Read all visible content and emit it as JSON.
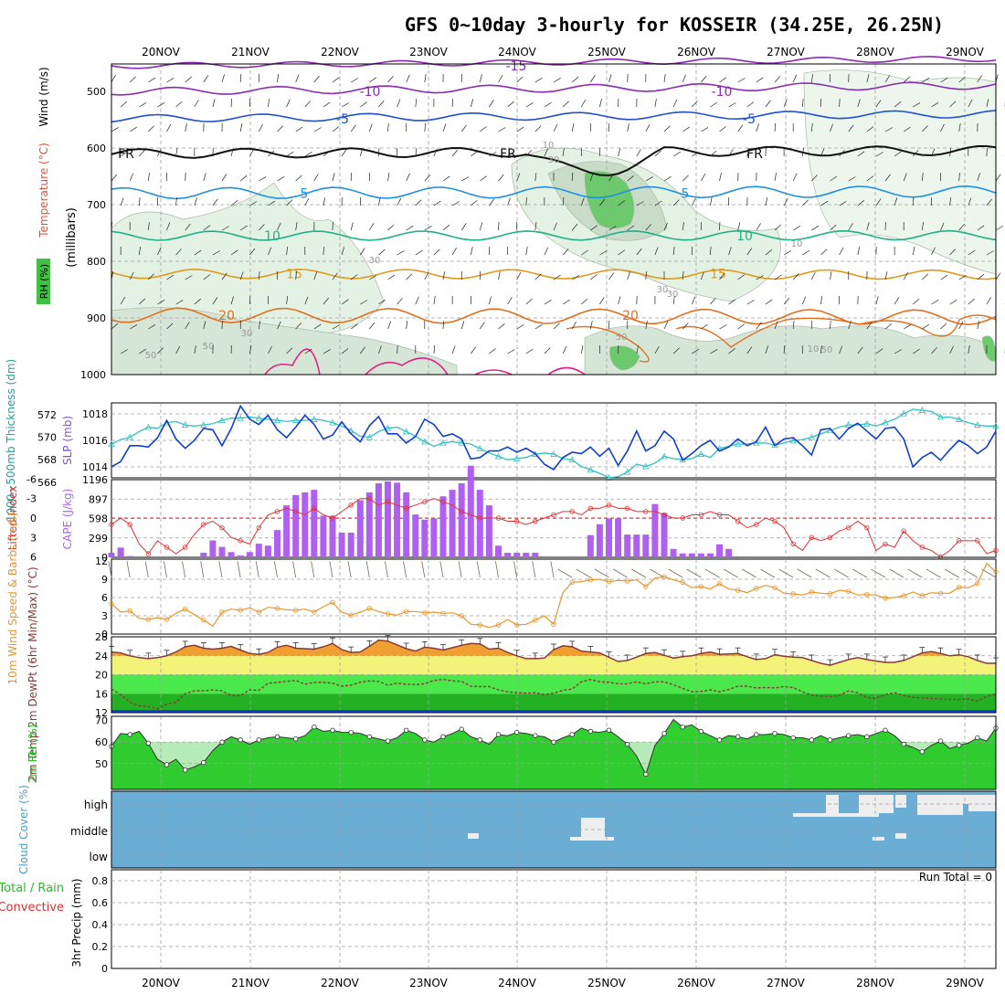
{
  "title": "GFS 0~10day 3-hourly for KOSSEIR (34.25E, 26.25N)",
  "days": [
    "20NOV",
    "21NOV",
    "22NOV",
    "23NOV",
    "24NOV",
    "25NOV",
    "26NOV",
    "27NOV",
    "28NOV",
    "29NOV"
  ],
  "colors": {
    "grid": "#a0a0a0",
    "rh": "#7fd07f",
    "thick": "#33c0c0",
    "slp": "#1040c8",
    "lifted": "#e03030",
    "cape": "#b060f0",
    "wind": "#e8952a",
    "temp": "#f0a030",
    "dew": "#8b3a3a",
    "rh2m": "#22cc22",
    "cloud": "#6aaed6",
    "cloudHi": "#eeeeee"
  },
  "chart_data": [
    {
      "id": "upper-air",
      "type": "heatmap",
      "ylabels": {
        "rh": "RH (%)",
        "temp": "Temperature (°C)",
        "wind": "Wind (m/s)",
        "pressure": "(millibars)"
      },
      "yticks": [
        "500",
        "600",
        "700",
        "800",
        "900",
        "1000"
      ],
      "ylim": [
        1000,
        450
      ],
      "isotherm_labels": [
        "-15",
        "-10",
        "-10",
        "-5",
        "-5",
        "FR",
        "FR",
        "FR",
        "5",
        "5",
        "10",
        "10",
        "15",
        "15",
        "20",
        "20"
      ],
      "rh_labels": [
        "10",
        "30",
        "30",
        "10",
        "50",
        "50",
        "30",
        "10",
        "30",
        "50",
        "50",
        "30"
      ]
    },
    {
      "id": "slp-thickness",
      "type": "line",
      "ylabel_left": "1000~500mb Thickness (dm)",
      "ylabel_right": "SLP (mb)",
      "left_ticks": [
        "572",
        "570",
        "568",
        "566"
      ],
      "right_ticks": [
        "1018",
        "1016",
        "1014"
      ],
      "series": [
        {
          "name": "SLP",
          "values": [
            1014.0,
            1014.4,
            1015.6,
            1015.6,
            1015.5,
            1016.2,
            1017.5,
            1016.1,
            1015.4,
            1016.0,
            1016.9,
            1016.8,
            1015.6,
            1016.9,
            1018.6,
            1017.6,
            1017.2,
            1017.9,
            1016.8,
            1016.2,
            1017.0,
            1017.9,
            1017.2,
            1016.1,
            1016.4,
            1017.4,
            1016.5,
            1015.9,
            1017.1,
            1017.8,
            1016.5,
            1016.5,
            1015.8,
            1016.3,
            1017.6,
            1017.2,
            1016.3,
            1016.5,
            1016.1,
            1014.6,
            1014.7,
            1015.2,
            1015.2,
            1015.5,
            1015.1,
            1015.4,
            1015.0,
            1014.2,
            1013.8,
            1014.7,
            1015.1,
            1015.0,
            1015.5,
            1014.8,
            1015.4,
            1014.1,
            1015.2,
            1016.7,
            1015.2,
            1015.6,
            1016.7,
            1016.1,
            1014.5,
            1015.0,
            1015.6,
            1016.0,
            1015.2,
            1015.5,
            1016.1,
            1015.6,
            1015.9,
            1017.0,
            1015.6,
            1016.1,
            1016.2,
            1015.6,
            1014.9,
            1016.8,
            1016.9,
            1016.1,
            1016.9,
            1017.3,
            1016.7,
            1016.1,
            1016.9,
            1017.0,
            1016.1,
            1014.0,
            1014.7,
            1015.1,
            1014.5,
            1015.3,
            1016.0,
            1015.6,
            1015.0,
            1015.5,
            1016.7
          ]
        },
        {
          "name": "Thickness",
          "values": [
            569.4,
            569.8,
            570.0,
            570.5,
            570.9,
            570.8,
            571.3,
            571.4,
            571.1,
            571.0,
            571.1,
            571.2,
            571.5,
            571.7,
            571.7,
            571.8,
            571.7,
            571.6,
            571.5,
            571.4,
            571.5,
            571.5,
            571.6,
            571.5,
            571.3,
            571.0,
            570.6,
            570.1,
            570.0,
            570.5,
            570.8,
            570.9,
            570.5,
            570.1,
            569.6,
            569.2,
            569.5,
            569.6,
            569.5,
            569.4,
            569.0,
            568.6,
            568.3,
            568.0,
            568.1,
            568.2,
            568.5,
            568.6,
            568.5,
            568.1,
            568.0,
            567.4,
            567.1,
            566.8,
            566.4,
            566.5,
            566.9,
            567.6,
            567.4,
            567.7,
            568.3,
            568.1,
            568.0,
            568.1,
            568.5,
            568.2,
            569.0,
            569.2,
            569.4,
            569.4,
            569.5,
            569.5,
            569.3,
            569.5,
            569.7,
            569.8,
            570.0,
            570.3,
            570.6,
            570.9,
            571.1,
            571.1,
            571.2,
            571.0,
            571.3,
            571.6,
            572.1,
            572.5,
            572.4,
            572.3,
            571.8,
            571.8,
            571.6,
            571.3,
            571.1,
            571.0,
            571.0
          ]
        }
      ]
    },
    {
      "id": "cape-lifted",
      "type": "bar",
      "ylabel_left": "Lifted Index",
      "ylabel_right": "CAPE (J/kg)",
      "left_ticks": [
        "-6",
        "-3",
        "0",
        "3",
        "6"
      ],
      "right_ticks": [
        "1196",
        "897",
        "598",
        "299",
        "0"
      ],
      "series": [
        {
          "name": "CAPE",
          "values": [
            70,
            150,
            20,
            0,
            0,
            0,
            0,
            0,
            0,
            0,
            70,
            260,
            160,
            80,
            30,
            80,
            210,
            180,
            420,
            800,
            960,
            1000,
            1040,
            640,
            640,
            380,
            380,
            880,
            1000,
            1140,
            1170,
            1150,
            1000,
            660,
            580,
            600,
            940,
            1040,
            1140,
            1410,
            1040,
            800,
            180,
            70,
            70,
            70,
            70,
            0,
            0,
            0,
            0,
            0,
            340,
            510,
            600,
            600,
            350,
            350,
            350,
            820,
            680,
            130,
            60,
            60,
            60,
            60,
            200,
            130,
            0,
            0,
            0,
            0,
            0,
            0,
            0,
            0,
            0,
            0,
            0,
            0,
            0,
            0,
            0,
            0,
            0,
            0,
            0,
            0,
            0,
            0,
            0,
            0,
            0,
            0,
            0,
            0,
            0
          ]
        },
        {
          "name": "Lifted Index",
          "values": [
            1.0,
            0.0,
            1.0,
            4.0,
            5.5,
            3.5,
            4.5,
            5.5,
            4.5,
            2.5,
            1.0,
            0.5,
            1.5,
            3.0,
            3.5,
            4.0,
            1.5,
            -0.5,
            -1.0,
            -1.5,
            -1.0,
            -0.5,
            -1.5,
            -0.5,
            0.0,
            -1.0,
            -2.0,
            -3.0,
            -3.0,
            -2.0,
            -2.5,
            -2.0,
            -1.5,
            -2.0,
            -2.5,
            -3.0,
            -2.5,
            -2.0,
            -1.0,
            -0.5,
            0.0,
            0.0,
            0.0,
            0.5,
            0.5,
            1.0,
            0.5,
            0.0,
            -0.5,
            -1.0,
            -1.0,
            -0.5,
            -1.5,
            -1.5,
            -2.0,
            -1.5,
            -1.5,
            -1.0,
            -1.0,
            -1.0,
            -0.5,
            0.0,
            0.0,
            -0.5,
            -0.5,
            -1.0,
            -0.5,
            -0.5,
            0.5,
            1.5,
            1.0,
            0.0,
            0.5,
            1.5,
            4.0,
            5.0,
            3.0,
            3.5,
            3.0,
            2.0,
            1.5,
            0.5,
            1.5,
            5.0,
            4.0,
            4.5,
            2.0,
            3.5,
            4.5,
            5.0,
            6.0,
            5.0,
            3.5,
            3.5,
            3.5,
            5.5,
            5.0
          ]
        }
      ]
    },
    {
      "id": "wind10m",
      "type": "line",
      "ylabel": "10m Wind Speed & Barbs (m/s)",
      "ticks": [
        "12",
        "9",
        "6",
        "3",
        "0"
      ],
      "ylim": [
        0,
        12
      ],
      "values": [
        5.0,
        3.6,
        3.8,
        2.6,
        2.4,
        2.7,
        2.4,
        3.4,
        4.1,
        3.2,
        2.3,
        1.3,
        3.6,
        4.1,
        3.9,
        4.3,
        3.6,
        4.4,
        4.2,
        4.0,
        3.9,
        4.1,
        3.6,
        4.5,
        5.2,
        3.6,
        3.1,
        3.6,
        4.2,
        3.7,
        3.3,
        3.1,
        3.7,
        3.7,
        3.5,
        3.6,
        3.4,
        3.5,
        3.0,
        1.6,
        1.5,
        1.1,
        1.5,
        2.4,
        1.5,
        1.6,
        2.3,
        3.0,
        1.6,
        6.8,
        8.5,
        8.6,
        8.9,
        9.0,
        8.6,
        8.8,
        8.7,
        8.9,
        7.8,
        9.2,
        9.4,
        8.9,
        8.5,
        7.6,
        7.8,
        7.4,
        8.3,
        7.4,
        7.2,
        6.8,
        7.5,
        8.0,
        7.6,
        6.7,
        6.6,
        6.4,
        6.9,
        6.7,
        6.6,
        7.2,
        7.0,
        6.4,
        6.5,
        6.4,
        5.9,
        6.0,
        6.3,
        6.9,
        6.3,
        6.8,
        6.7,
        6.7,
        7.7,
        7.6,
        8.3,
        11.6,
        10.2
      ]
    },
    {
      "id": "temp2m",
      "type": "area",
      "ylabel": "2m Temp 2m DewPt (6hr Min/Max) (°C)",
      "ticks": [
        "28",
        "24",
        "20",
        "16",
        "12"
      ],
      "ylim": [
        12,
        28
      ],
      "series": [
        {
          "name": "2m Temp",
          "values": [
            24.8,
            24.6,
            24.0,
            23.6,
            23.4,
            23.6,
            24.0,
            24.8,
            25.9,
            26.2,
            25.6,
            25.4,
            25.6,
            26.0,
            25.2,
            24.5,
            24.3,
            24.7,
            25.8,
            26.2,
            25.6,
            25.5,
            25.4,
            25.9,
            26.6,
            25.3,
            24.7,
            24.8,
            26.0,
            27.3,
            27.1,
            26.3,
            25.5,
            25.0,
            25.8,
            25.6,
            25.2,
            25.7,
            26.2,
            26.6,
            26.5,
            25.4,
            25.6,
            24.7,
            24.0,
            23.4,
            23.4,
            23.5,
            25.3,
            26.1,
            25.9,
            25.0,
            24.8,
            24.6,
            23.7,
            22.8,
            23.0,
            23.7,
            24.5,
            24.7,
            24.1,
            23.5,
            23.8,
            24.0,
            24.5,
            24.8,
            24.3,
            24.4,
            24.5,
            23.8,
            23.2,
            23.4,
            24.2,
            23.9,
            23.7,
            23.6,
            23.0,
            22.4,
            22.0,
            22.6,
            23.2,
            23.6,
            23.2,
            22.9,
            22.6,
            22.6,
            23.0,
            23.8,
            24.6,
            24.9,
            24.5,
            24.0,
            24.2,
            23.8,
            23.0,
            22.4,
            22.4
          ]
        },
        {
          "name": "2m DewPt",
          "values": [
            17.0,
            15.8,
            14.2,
            13.4,
            13.3,
            12.8,
            13.8,
            14.2,
            16.0,
            16.6,
            16.6,
            16.8,
            16.6,
            15.6,
            15.6,
            16.8,
            16.7,
            18.2,
            18.4,
            18.6,
            18.8,
            18.0,
            18.4,
            18.4,
            18.2,
            17.6,
            17.8,
            18.4,
            18.7,
            18.6,
            17.8,
            18.2,
            18.0,
            17.9,
            18.1,
            18.8,
            19.0,
            18.7,
            18.6,
            17.6,
            17.5,
            17.5,
            16.8,
            16.4,
            16.2,
            16.1,
            16.2,
            15.8,
            16.1,
            16.7,
            17.0,
            18.5,
            19.0,
            18.5,
            18.4,
            18.1,
            18.1,
            18.5,
            18.1,
            18.5,
            18.5,
            17.9,
            17.1,
            16.4,
            16.5,
            16.8,
            16.4,
            16.9,
            17.6,
            17.6,
            17.2,
            17.3,
            17.2,
            17.5,
            17.3,
            16.4,
            15.7,
            15.5,
            15.4,
            15.6,
            16.6,
            16.2,
            15.2,
            15.0,
            15.8,
            16.2,
            15.6,
            15.2,
            15.1,
            15.0,
            14.9,
            14.8,
            14.8,
            14.9,
            14.4,
            15.4,
            16.0
          ]
        }
      ]
    },
    {
      "id": "rh2m",
      "type": "area",
      "ylabel": "2m RH (%)",
      "ticks": [
        "70",
        "60",
        "50"
      ],
      "ylim": [
        38,
        72
      ],
      "values": [
        58.0,
        64.0,
        63.5,
        65.0,
        59.5,
        52.0,
        49.5,
        52.0,
        47.0,
        48.5,
        50.5,
        56.0,
        60.0,
        62.5,
        61.0,
        59.0,
        61.0,
        62.0,
        62.5,
        62.0,
        61.5,
        63.0,
        67.0,
        65.0,
        65.5,
        64.5,
        64.5,
        64.0,
        62.5,
        61.5,
        60.5,
        62.0,
        65.5,
        64.0,
        61.0,
        60.0,
        62.5,
        64.0,
        66.0,
        62.5,
        61.0,
        59.0,
        63.5,
        63.0,
        64.5,
        64.0,
        63.0,
        62.5,
        60.0,
        62.0,
        63.5,
        66.5,
        65.0,
        64.5,
        65.5,
        62.5,
        59.0,
        53.5,
        45.0,
        58.5,
        64.0,
        70.5,
        67.0,
        68.0,
        65.0,
        63.0,
        61.0,
        63.0,
        62.5,
        61.5,
        63.5,
        63.5,
        64.0,
        63.5,
        62.0,
        62.0,
        61.0,
        63.0,
        61.0,
        62.0,
        63.0,
        63.5,
        62.5,
        64.0,
        65.5,
        63.0,
        59.0,
        57.5,
        55.5,
        58.5,
        60.5,
        57.0,
        58.5,
        59.5,
        62.0,
        60.5,
        66.5
      ]
    },
    {
      "id": "cloud",
      "type": "heatmap",
      "ylabel": "Cloud Cover (%)",
      "levels": [
        "high",
        "middle",
        "low"
      ]
    },
    {
      "id": "precip",
      "type": "bar",
      "ylabel": "3hr Precip (mm)",
      "legend": [
        "Total / Rain",
        "Convective"
      ],
      "ticks": [
        "0.8",
        "0.6",
        "0.4",
        "0.2",
        "0"
      ],
      "ylim": [
        0,
        0.9
      ],
      "run_total_label": "Run Total = 0",
      "values": []
    }
  ]
}
